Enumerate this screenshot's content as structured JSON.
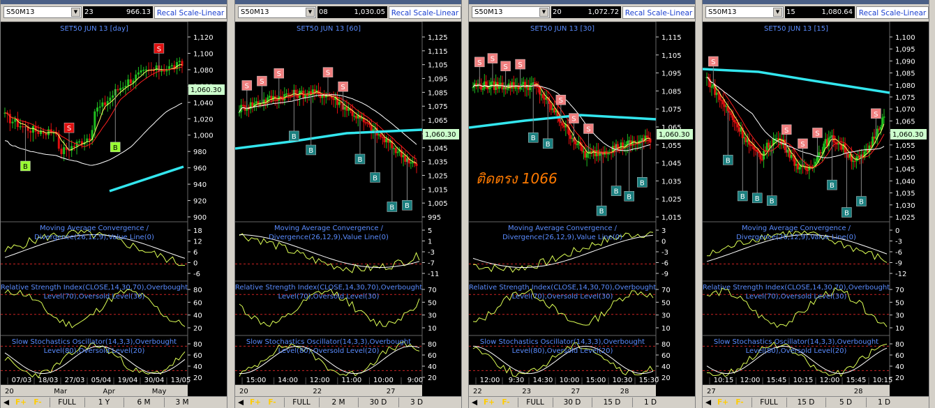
{
  "panels": [
    {
      "symbol": "S50M13",
      "value_prefix": "23",
      "value": "966.13",
      "recal_label": "Recal Scale-Linear",
      "title": "SET50 JUN 13   [day]",
      "last_price": "1,060.30",
      "price_ticks": [
        "1,120",
        "1,100",
        "1,080",
        "1,060",
        "1,040",
        "1,020",
        "1,000",
        "980",
        "960",
        "940",
        "920",
        "900"
      ],
      "macd_ticks": [
        "18",
        "12",
        "6",
        "0",
        "-6"
      ],
      "rsi_ticks": [
        "80",
        "60",
        "40",
        "20"
      ],
      "stoch_ticks": [
        "80",
        "60",
        "40",
        "20"
      ],
      "time_labels": [
        "07/03",
        "18/03",
        "27/03",
        "05/04",
        "19/04",
        "30/04",
        "13/05"
      ],
      "period_labels": [
        "20",
        "Mar",
        "Apr",
        "May"
      ],
      "buttons": [
        "FULL",
        "1 Y",
        "6 M",
        "3 M"
      ],
      "markers": [
        "B",
        "S",
        "B",
        "S"
      ]
    },
    {
      "symbol": "S50M13",
      "value_prefix": "08",
      "value": "1,030.05",
      "recal_label": "Recal Scale-Linear",
      "title": "SET50 JUN 13   [60]",
      "last_price": "1,060.30",
      "price_ticks": [
        "1,125",
        "1,115",
        "1,105",
        "1,095",
        "1,085",
        "1,075",
        "1,065",
        "1,055",
        "1,045",
        "1,035",
        "1,025",
        "1,015",
        "1,005",
        "995"
      ],
      "macd_ticks": [
        "5",
        "1",
        "-3",
        "-7",
        "-11"
      ],
      "rsi_ticks": [
        "70",
        "50",
        "30",
        "10"
      ],
      "stoch_ticks": [
        "80",
        "60",
        "40",
        "20"
      ],
      "time_labels": [
        "15:00",
        "14:00",
        "12:00",
        "11:00",
        "10:00",
        "9:00"
      ],
      "period_labels": [
        "20",
        "22",
        "27"
      ],
      "buttons": [
        "FULL",
        "2 M",
        "30 D",
        "3 D"
      ],
      "markers": [
        "S",
        "S",
        "S",
        "B",
        "B",
        "S",
        "S",
        "B",
        "B",
        "B",
        "B"
      ]
    },
    {
      "symbol": "S50M13",
      "value_prefix": "20",
      "value": "1,072.72",
      "recal_label": "Recal Scale-Linear",
      "title": "SET50 JUN 13   [30]",
      "last_price": "1,060.30",
      "annotation": "ติดตรง 1066",
      "price_ticks": [
        "1,115",
        "1,105",
        "1,095",
        "1,085",
        "1,075",
        "1,065",
        "1,055",
        "1,045",
        "1,035",
        "1,025",
        "1,015"
      ],
      "macd_ticks": [
        "3",
        "0",
        "-3",
        "-6",
        "-9"
      ],
      "rsi_ticks": [
        "70",
        "50",
        "30",
        "10"
      ],
      "stoch_ticks": [
        "80",
        "60",
        "40",
        "20"
      ],
      "time_labels": [
        "12:00",
        "9:30",
        "14:30",
        "10:00",
        "15:00",
        "10:30",
        "15:30"
      ],
      "period_labels": [
        "22",
        "23",
        "27",
        "28"
      ],
      "buttons": [
        "FULL",
        "30 D",
        "15 D",
        "1 D"
      ],
      "markers": [
        "S",
        "S",
        "S",
        "S",
        "B",
        "B",
        "S",
        "S",
        "S",
        "B",
        "B",
        "B",
        "B"
      ]
    },
    {
      "symbol": "S50M13",
      "value_prefix": "15",
      "value": "1,080.64",
      "recal_label": "Recal Scale-Linear",
      "title": "SET50 JUN 13   [15]",
      "last_price": "1,060.30",
      "price_ticks": [
        "1,100",
        "1,095",
        "1,090",
        "1,085",
        "1,080",
        "1,075",
        "1,070",
        "1,065",
        "1,060",
        "1,055",
        "1,050",
        "1,045",
        "1,040",
        "1,035",
        "1,030",
        "1,025"
      ],
      "macd_ticks": [
        "0",
        "-3",
        "-6",
        "-9",
        "-12"
      ],
      "rsi_ticks": [
        "70",
        "50",
        "30",
        "10"
      ],
      "stoch_ticks": [
        "80",
        "60",
        "40",
        "20"
      ],
      "time_labels": [
        "10:15",
        "12:00",
        "15:45",
        "10:15",
        "12:00",
        "15:45",
        "10:15"
      ],
      "period_labels": [
        "27",
        "28"
      ],
      "buttons": [
        "FULL",
        "15 D",
        "5 D",
        "1 D"
      ],
      "markers": [
        "S",
        "B",
        "B",
        "B",
        "B",
        "S",
        "S",
        "S",
        "B",
        "B",
        "B",
        "S"
      ]
    }
  ],
  "macd_title_1": "Moving Average Convergence /",
  "macd_title_2": "Divergence(26,12,9),Value Line(0)",
  "rsi_title_1": "Relative Strength Index(CLOSE,14,30,70),Overbought",
  "rsi_title_2": "Level(70),Oversold Level(30)",
  "stoch_title_1": "Slow Stochastics Oscillator(14,3,3),Overbought",
  "stoch_title_2": "Level(80),Oversold Level(20)",
  "colors": {
    "price_box": "#ccffcc",
    "cyan_ma": "#33e6ee",
    "up_candle": "#1fbf1f",
    "down_candle": "#e01010",
    "label_blue": "#5a8cff",
    "sell_box": "#f08080",
    "buy_box_green": "#99ff33",
    "buy_box_teal": "#1b7f7f",
    "annotation": "#ff7a00"
  }
}
